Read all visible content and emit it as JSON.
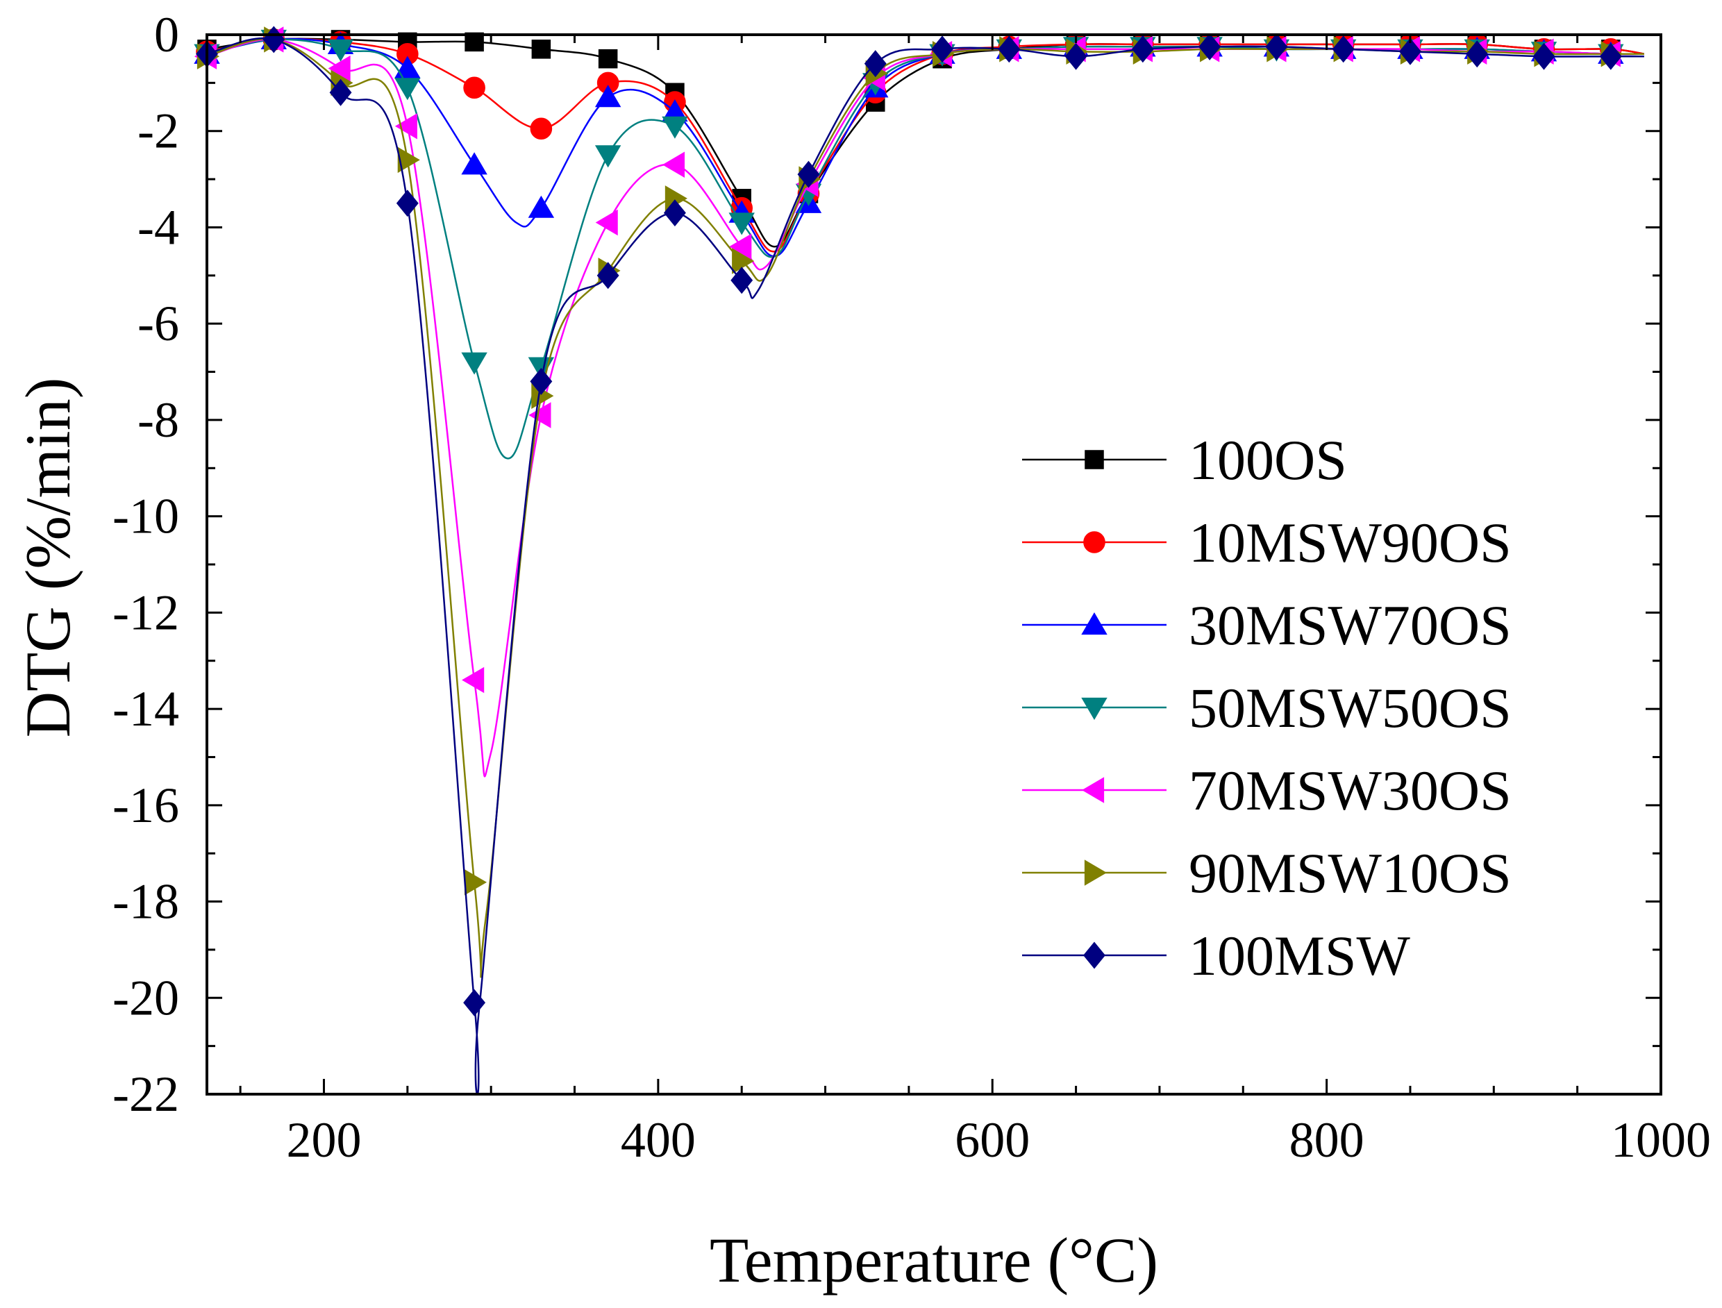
{
  "chart_data": {
    "type": "line",
    "title": "",
    "xlabel": "Temperature (°C)",
    "ylabel": "DTG (%/min)",
    "xlim": [
      130,
      1000
    ],
    "ylim": [
      -22,
      0
    ],
    "x_ticks": [
      "200",
      "400",
      "600",
      "800",
      "1000"
    ],
    "y_ticks": [
      "0",
      "-2",
      "-4",
      "-6",
      "-8",
      "-10",
      "-12",
      "-14",
      "-16",
      "-18",
      "-20",
      "-22"
    ],
    "legend_position": "right",
    "grid": false,
    "series": [
      {
        "name": "100OS",
        "color": "#000000",
        "marker": "square",
        "x": [
          130,
          170,
          210,
          250,
          290,
          330,
          370,
          410,
          450,
          470,
          490,
          530,
          570,
          610,
          650,
          690,
          730,
          770,
          810,
          850,
          890,
          930,
          970,
          990
        ],
        "y": [
          -0.3,
          -0.1,
          -0.1,
          -0.15,
          -0.15,
          -0.3,
          -0.5,
          -1.2,
          -3.4,
          -4.4,
          -3.3,
          -1.4,
          -0.5,
          -0.3,
          -0.2,
          -0.2,
          -0.2,
          -0.2,
          -0.2,
          -0.2,
          -0.2,
          -0.3,
          -0.3,
          -0.4
        ],
        "markers_x": [
          130,
          170,
          210,
          250,
          290,
          330,
          370,
          410,
          450,
          490,
          530,
          570,
          610,
          650,
          690,
          730,
          770,
          810,
          850,
          890,
          930,
          970
        ],
        "markers_y": [
          -0.3,
          -0.1,
          -0.1,
          -0.15,
          -0.15,
          -0.3,
          -0.5,
          -1.2,
          -3.4,
          -3.3,
          -1.4,
          -0.5,
          -0.3,
          -0.2,
          -0.2,
          -0.2,
          -0.2,
          -0.2,
          -0.2,
          -0.2,
          -0.3,
          -0.3
        ]
      },
      {
        "name": "10MSW90OS",
        "color": "#ff0000",
        "marker": "circle",
        "x": [
          130,
          170,
          210,
          250,
          290,
          330,
          370,
          410,
          450,
          470,
          490,
          530,
          570,
          610,
          650,
          690,
          730,
          770,
          810,
          850,
          890,
          930,
          970,
          990
        ],
        "y": [
          -0.35,
          -0.1,
          -0.15,
          -0.4,
          -1.1,
          -1.95,
          -1.0,
          -1.4,
          -3.6,
          -4.5,
          -3.3,
          -1.2,
          -0.4,
          -0.25,
          -0.2,
          -0.2,
          -0.2,
          -0.2,
          -0.2,
          -0.2,
          -0.2,
          -0.3,
          -0.3,
          -0.4
        ],
        "markers_x": [
          130,
          170,
          210,
          250,
          290,
          330,
          370,
          410,
          450,
          490,
          530,
          570,
          610,
          650,
          690,
          730,
          770,
          810,
          850,
          890,
          930,
          970
        ],
        "markers_y": [
          -0.35,
          -0.1,
          -0.15,
          -0.4,
          -1.1,
          -1.95,
          -1.0,
          -1.4,
          -3.6,
          -3.3,
          -1.2,
          -0.4,
          -0.25,
          -0.2,
          -0.2,
          -0.2,
          -0.2,
          -0.2,
          -0.2,
          -0.2,
          -0.3,
          -0.3
        ]
      },
      {
        "name": "30MSW70OS",
        "color": "#0000ff",
        "marker": "triangle-up",
        "x": [
          130,
          170,
          210,
          250,
          290,
          315,
          330,
          370,
          410,
          450,
          470,
          490,
          530,
          570,
          610,
          650,
          690,
          730,
          770,
          810,
          850,
          890,
          930,
          970,
          990
        ],
        "y": [
          -0.4,
          -0.1,
          -0.2,
          -0.7,
          -2.7,
          -3.9,
          -3.6,
          -1.3,
          -1.6,
          -3.7,
          -4.6,
          -3.5,
          -1.1,
          -0.4,
          -0.3,
          -0.25,
          -0.25,
          -0.25,
          -0.25,
          -0.3,
          -0.3,
          -0.3,
          -0.35,
          -0.4,
          -0.4
        ],
        "markers_x": [
          130,
          170,
          210,
          250,
          290,
          330,
          370,
          410,
          450,
          490,
          530,
          570,
          610,
          650,
          690,
          730,
          770,
          810,
          850,
          890,
          930,
          970
        ],
        "markers_y": [
          -0.4,
          -0.1,
          -0.2,
          -0.7,
          -2.7,
          -3.6,
          -1.3,
          -1.6,
          -3.7,
          -3.5,
          -1.1,
          -0.4,
          -0.3,
          -0.25,
          -0.25,
          -0.25,
          -0.25,
          -0.3,
          -0.3,
          -0.3,
          -0.35,
          -0.4
        ]
      },
      {
        "name": "50MSW50OS",
        "color": "#008080",
        "marker": "triangle-down",
        "x": [
          130,
          170,
          210,
          250,
          290,
          310,
          330,
          370,
          410,
          450,
          470,
          490,
          530,
          570,
          610,
          650,
          690,
          730,
          770,
          810,
          850,
          890,
          930,
          970,
          990
        ],
        "y": [
          -0.4,
          -0.1,
          -0.3,
          -1.1,
          -6.8,
          -8.8,
          -6.9,
          -2.5,
          -1.9,
          -3.9,
          -4.6,
          -3.3,
          -1.0,
          -0.4,
          -0.3,
          -0.25,
          -0.25,
          -0.25,
          -0.3,
          -0.3,
          -0.3,
          -0.3,
          -0.35,
          -0.4,
          -0.4
        ],
        "markers_x": [
          130,
          170,
          210,
          250,
          290,
          330,
          370,
          410,
          450,
          490,
          530,
          570,
          610,
          650,
          690,
          730,
          770,
          810,
          850,
          890,
          930,
          970
        ],
        "markers_y": [
          -0.4,
          -0.1,
          -0.3,
          -1.1,
          -6.8,
          -6.9,
          -2.5,
          -1.9,
          -3.9,
          -3.3,
          -1.0,
          -0.4,
          -0.3,
          -0.25,
          -0.25,
          -0.25,
          -0.3,
          -0.3,
          -0.3,
          -0.3,
          -0.35,
          -0.4
        ]
      },
      {
        "name": "70MSW30OS",
        "color": "#ff00ff",
        "marker": "triangle-left",
        "x": [
          130,
          170,
          210,
          250,
          290,
          300,
          330,
          370,
          410,
          450,
          465,
          490,
          530,
          570,
          610,
          650,
          690,
          730,
          770,
          810,
          850,
          890,
          930,
          970,
          990
        ],
        "y": [
          -0.45,
          -0.1,
          -0.7,
          -1.9,
          -13.4,
          -14.9,
          -7.9,
          -3.9,
          -2.7,
          -4.4,
          -4.8,
          -3.1,
          -0.9,
          -0.4,
          -0.3,
          -0.3,
          -0.3,
          -0.3,
          -0.3,
          -0.3,
          -0.3,
          -0.35,
          -0.35,
          -0.4,
          -0.4
        ],
        "markers_x": [
          130,
          170,
          210,
          250,
          290,
          330,
          370,
          410,
          450,
          490,
          530,
          570,
          610,
          650,
          690,
          730,
          770,
          810,
          850,
          890,
          930,
          970
        ],
        "markers_y": [
          -0.45,
          -0.1,
          -0.7,
          -1.9,
          -13.4,
          -7.9,
          -3.9,
          -2.7,
          -4.4,
          -3.1,
          -0.9,
          -0.4,
          -0.3,
          -0.3,
          -0.3,
          -0.3,
          -0.3,
          -0.3,
          -0.3,
          -0.35,
          -0.35,
          -0.4
        ]
      },
      {
        "name": "90MSW10OS",
        "color": "#808000",
        "marker": "triangle-right",
        "x": [
          130,
          170,
          210,
          250,
          290,
          297,
          330,
          370,
          410,
          450,
          465,
          490,
          530,
          570,
          610,
          650,
          690,
          730,
          770,
          810,
          850,
          890,
          930,
          970,
          990
        ],
        "y": [
          -0.45,
          -0.1,
          -1.0,
          -2.6,
          -17.6,
          -18.3,
          -7.5,
          -4.9,
          -3.4,
          -4.7,
          -5.0,
          -3.0,
          -0.8,
          -0.4,
          -0.3,
          -0.35,
          -0.35,
          -0.3,
          -0.3,
          -0.3,
          -0.35,
          -0.35,
          -0.4,
          -0.4,
          -0.4
        ],
        "markers_x": [
          130,
          170,
          210,
          250,
          290,
          330,
          370,
          410,
          450,
          490,
          530,
          570,
          610,
          650,
          690,
          730,
          770,
          810,
          850,
          890,
          930,
          970
        ],
        "markers_y": [
          -0.45,
          -0.1,
          -1.0,
          -2.6,
          -17.6,
          -7.5,
          -4.9,
          -3.4,
          -4.7,
          -3.0,
          -0.8,
          -0.4,
          -0.3,
          -0.35,
          -0.35,
          -0.3,
          -0.3,
          -0.3,
          -0.35,
          -0.35,
          -0.4,
          -0.4
        ]
      },
      {
        "name": "100MSW",
        "color": "#000080",
        "marker": "diamond",
        "x": [
          130,
          170,
          210,
          250,
          290,
          293,
          330,
          370,
          410,
          450,
          460,
          490,
          530,
          570,
          610,
          650,
          690,
          730,
          770,
          810,
          850,
          890,
          930,
          970,
          990
        ],
        "y": [
          -0.4,
          -0.1,
          -1.2,
          -3.5,
          -20.1,
          -20.2,
          -7.2,
          -5.0,
          -3.7,
          -5.1,
          -5.3,
          -2.9,
          -0.6,
          -0.3,
          -0.3,
          -0.45,
          -0.3,
          -0.25,
          -0.25,
          -0.3,
          -0.35,
          -0.4,
          -0.45,
          -0.45,
          -0.45
        ],
        "markers_x": [
          130,
          170,
          210,
          250,
          290,
          330,
          370,
          410,
          450,
          490,
          530,
          570,
          610,
          650,
          690,
          730,
          770,
          810,
          850,
          890,
          930,
          970
        ],
        "markers_y": [
          -0.4,
          -0.1,
          -1.2,
          -3.5,
          -20.1,
          -7.2,
          -5.0,
          -3.7,
          -5.1,
          -2.9,
          -0.6,
          -0.3,
          -0.3,
          -0.45,
          -0.3,
          -0.25,
          -0.25,
          -0.3,
          -0.35,
          -0.4,
          -0.45,
          -0.45
        ]
      }
    ]
  }
}
